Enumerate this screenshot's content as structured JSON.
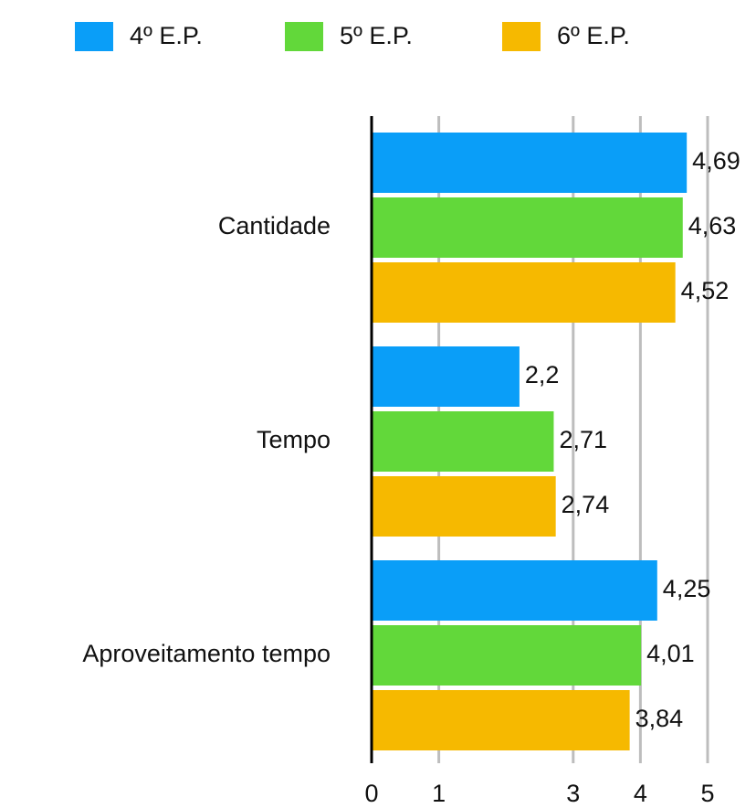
{
  "chart_data": {
    "type": "bar",
    "orientation": "horizontal",
    "categories": [
      "Cantidade",
      "Tempo",
      "Aproveitamento tempo"
    ],
    "series": [
      {
        "name": "4º E.P.",
        "color": "#0a9ef8",
        "values": [
          4.69,
          2.2,
          4.25
        ],
        "value_labels": [
          "4,69",
          "2,2",
          "4,25"
        ]
      },
      {
        "name": "5º E.P.",
        "color": "#62d83a",
        "values": [
          4.63,
          2.71,
          4.01
        ],
        "value_labels": [
          "4,63",
          "2,71",
          "4,01"
        ]
      },
      {
        "name": "6º E.P.",
        "color": "#f6b900",
        "values": [
          4.52,
          2.74,
          3.84
        ],
        "value_labels": [
          "4,52",
          "2,74",
          "3,84"
        ]
      }
    ],
    "xlim": [
      0,
      5
    ],
    "xticks": [
      0,
      1,
      3,
      4,
      5
    ],
    "grid": true,
    "legend": "top"
  }
}
